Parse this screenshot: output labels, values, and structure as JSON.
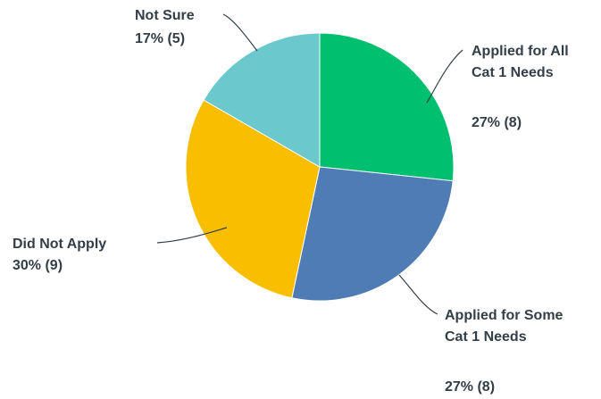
{
  "chart_data": {
    "type": "pie",
    "slices": [
      {
        "label_lines": [
          "Applied for All",
          "Cat 1 Needs"
        ],
        "value_text": "27% (8)",
        "percent": 27,
        "count": 8,
        "color": "#00bf6f"
      },
      {
        "label_lines": [
          "Applied for Some",
          "Cat 1 Needs"
        ],
        "value_text": "27% (8)",
        "percent": 27,
        "count": 8,
        "color": "#507cb6"
      },
      {
        "label_lines": [
          "Did Not Apply"
        ],
        "value_text": "30% (9)",
        "percent": 30,
        "count": 9,
        "color": "#f9be00"
      },
      {
        "label_lines": [
          "Not Sure"
        ],
        "value_text": "17% (5)",
        "percent": 17,
        "count": 5,
        "color": "#6bc8cd"
      }
    ]
  }
}
